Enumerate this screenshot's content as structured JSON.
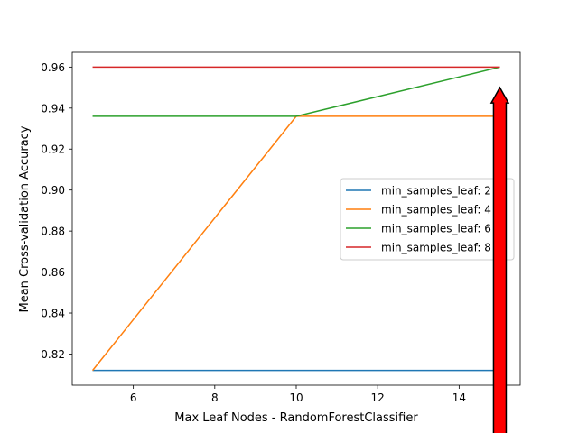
{
  "chart_data": {
    "type": "line",
    "title": "",
    "xlabel": "Max Leaf Nodes - RandomForestClassifier",
    "ylabel": "Mean Cross-validation Accuracy",
    "xlim": [
      4.5,
      15.5
    ],
    "ylim": [
      0.8048,
      0.9672
    ],
    "x_ticks": [
      6,
      8,
      10,
      12,
      14
    ],
    "y_ticks": [
      0.82,
      0.84,
      0.86,
      0.88,
      0.9,
      0.92,
      0.94,
      0.96
    ],
    "y_tick_labels": [
      "0.82",
      "0.84",
      "0.86",
      "0.88",
      "0.90",
      "0.92",
      "0.94",
      "0.96"
    ],
    "grid": false,
    "legend_position": "center-right",
    "series": [
      {
        "name": "min_samples_leaf: 2",
        "color": "#1f77b4",
        "x": [
          5,
          10,
          15
        ],
        "y": [
          0.812,
          0.812,
          0.812
        ]
      },
      {
        "name": "min_samples_leaf: 4",
        "color": "#ff7f0e",
        "x": [
          5,
          10,
          15
        ],
        "y": [
          0.812,
          0.936,
          0.936
        ]
      },
      {
        "name": "min_samples_leaf: 6",
        "color": "#2ca02c",
        "x": [
          5,
          10,
          15
        ],
        "y": [
          0.936,
          0.936,
          0.96
        ]
      },
      {
        "name": "min_samples_leaf: 8",
        "color": "#d62728",
        "x": [
          5,
          10,
          15
        ],
        "y": [
          0.96,
          0.96,
          0.96
        ]
      }
    ],
    "annotation_arrow": {
      "x": 15,
      "y_tip": 0.95,
      "color": "#ff0000",
      "edge_color": "#000000",
      "direction": "up"
    }
  }
}
